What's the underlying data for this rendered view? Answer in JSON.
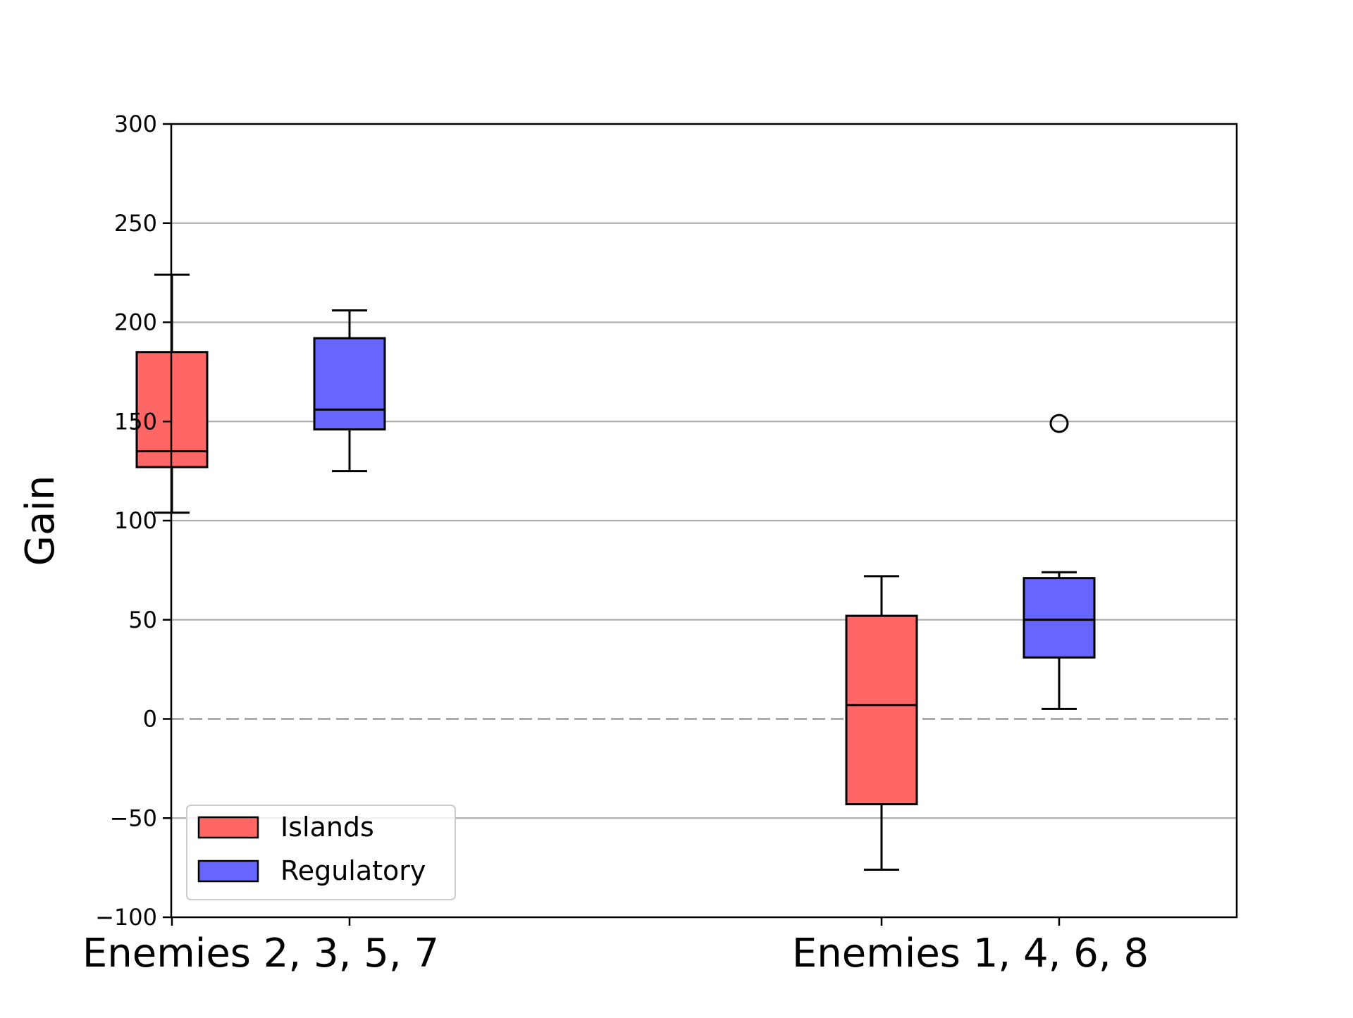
{
  "chart_data": {
    "type": "boxplot",
    "title": "",
    "xlabel": "",
    "ylabel": "Gain",
    "ylim": [
      -100,
      300
    ],
    "yticks": [
      -100,
      -50,
      0,
      50,
      100,
      150,
      200,
      250,
      300
    ],
    "ytick_labels": [
      "−100",
      "−50",
      "0",
      "50",
      "100",
      "150",
      "200",
      "250",
      "300"
    ],
    "grid": "horizontal",
    "reference_line": {
      "y": 0,
      "style": "dashed",
      "color": "#999999"
    },
    "categories": [
      "Enemies 2, 3, 5, 7",
      "Enemies 1, 4, 6, 8"
    ],
    "legend": {
      "placement": "lower-left",
      "entries": [
        "Islands",
        "Regulatory"
      ]
    },
    "series": [
      {
        "name": "Islands",
        "color": "#ff6666",
        "boxes": [
          {
            "whisker_low": 104,
            "q1": 127,
            "median": 135,
            "q3": 185,
            "whisker_high": 224,
            "outliers": []
          },
          {
            "whisker_low": -76,
            "q1": -43,
            "median": 7,
            "q3": 52,
            "whisker_high": 72,
            "outliers": []
          }
        ]
      },
      {
        "name": "Regulatory",
        "color": "#6666ff",
        "boxes": [
          {
            "whisker_low": 125,
            "q1": 146,
            "median": 156,
            "q3": 192,
            "whisker_high": 206,
            "outliers": []
          },
          {
            "whisker_low": 5,
            "q1": 31,
            "median": 50,
            "q3": 71,
            "whisker_high": 74,
            "outliers": [
              149
            ]
          }
        ]
      }
    ]
  }
}
